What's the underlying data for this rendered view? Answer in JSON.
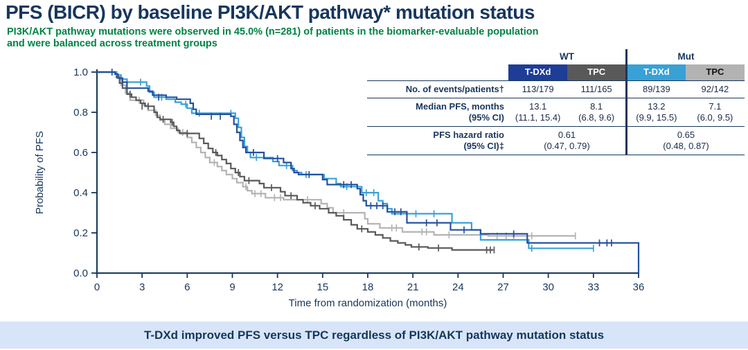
{
  "header": {
    "title": "PFS (BICR) by baseline PI3K/AKT pathway* mutation status",
    "subtitle_line1": "PI3K/AKT pathway mutations were observed in 45.0% (n=281) of patients in the biomarker-evaluable population",
    "subtitle_line2": "and were balanced across treatment groups"
  },
  "colors": {
    "navy_text": "#17365d",
    "green_text": "#008345",
    "wt_tdxd": "#2450a0",
    "wt_tpc": "#595959",
    "mut_tdxd": "#38a1d6",
    "mut_tpc": "#b3b3b3",
    "header_navy_bg": "#1e3d96",
    "banner_bg": "#d8e5f8"
  },
  "table": {
    "wt_label": "WT",
    "mut_label": "Mut",
    "tdxd_label": "T-DXd",
    "tpc_label": "TPC",
    "row_events_label": "No. of events/patients†",
    "row_events": [
      "113/179",
      "111/165",
      "89/139",
      "92/142"
    ],
    "row_median_label_1": "Median PFS, months",
    "row_median_label_2": "(95% CI)",
    "row_median_top": [
      "13.1",
      "8.1",
      "13.2",
      "7.1"
    ],
    "row_median_ci": [
      "(11.1, 15.4)",
      "(6.8, 9.6)",
      "(9.9, 15.5)",
      "(6.0, 9.5)"
    ],
    "row_hr_label_1": "PFS hazard ratio",
    "row_hr_label_2": "(95% CI)‡",
    "row_hr_top": [
      "0.61",
      "0.65"
    ],
    "row_hr_ci": [
      "(0.47, 0.79)",
      "(0.48, 0.87)"
    ]
  },
  "banner": {
    "text": "T-DXd improved PFS versus TPC regardless of PI3K/AKT pathway mutation status"
  },
  "chart_data": {
    "type": "line",
    "subtype": "kaplan-meier-step",
    "title": "",
    "xlabel": "Time from randomization (months)",
    "ylabel": "Probability of PFS",
    "xlim": [
      0,
      36
    ],
    "ylim": [
      0,
      1
    ],
    "x_ticks": [
      0,
      3,
      6,
      9,
      12,
      15,
      18,
      21,
      24,
      27,
      30,
      33,
      36
    ],
    "y_ticks": [
      0.0,
      0.2,
      0.4,
      0.6,
      0.8,
      1.0
    ],
    "grid": false,
    "legend": "none (series identified by table header colors)",
    "series": [
      {
        "name": "Mut TPC",
        "color": "#b3b3b3",
        "median_pfs_months": 7.1,
        "steps": [
          [
            0,
            1.0
          ],
          [
            1.3,
            0.97
          ],
          [
            1.6,
            0.935
          ],
          [
            1.9,
            0.895
          ],
          [
            2.2,
            0.86
          ],
          [
            3.1,
            0.835
          ],
          [
            3.4,
            0.81
          ],
          [
            3.9,
            0.785
          ],
          [
            4.2,
            0.76
          ],
          [
            4.5,
            0.74
          ],
          [
            4.9,
            0.72
          ],
          [
            5.4,
            0.7
          ],
          [
            6.0,
            0.675
          ],
          [
            6.3,
            0.65
          ],
          [
            6.6,
            0.625
          ],
          [
            6.9,
            0.6
          ],
          [
            7.2,
            0.575
          ],
          [
            7.5,
            0.55
          ],
          [
            8.0,
            0.53
          ],
          [
            8.3,
            0.51
          ],
          [
            8.6,
            0.49
          ],
          [
            9.0,
            0.47
          ],
          [
            9.3,
            0.45
          ],
          [
            9.7,
            0.43
          ],
          [
            10.0,
            0.41
          ],
          [
            10.3,
            0.395
          ],
          [
            11.2,
            0.375
          ],
          [
            12.4,
            0.365
          ],
          [
            14.9,
            0.345
          ],
          [
            15.3,
            0.325
          ],
          [
            15.7,
            0.3
          ],
          [
            17.8,
            0.27
          ],
          [
            18.0,
            0.245
          ],
          [
            18.8,
            0.225
          ],
          [
            20.3,
            0.205
          ],
          [
            22.4,
            0.19
          ],
          [
            26.0,
            0.185
          ],
          [
            31.8,
            0.185
          ]
        ],
        "censors": [
          [
            2.8,
            0.86
          ],
          [
            5.7,
            0.7
          ],
          [
            7.8,
            0.55
          ],
          [
            9.9,
            0.43
          ],
          [
            10.5,
            0.395
          ],
          [
            10.9,
            0.395
          ],
          [
            11.8,
            0.375
          ],
          [
            12.2,
            0.375
          ],
          [
            14.0,
            0.365
          ],
          [
            16.4,
            0.3
          ],
          [
            19.6,
            0.225
          ],
          [
            19.9,
            0.225
          ],
          [
            21.6,
            0.205
          ],
          [
            21.9,
            0.205
          ],
          [
            23.4,
            0.19
          ],
          [
            26.6,
            0.185
          ],
          [
            27.2,
            0.185
          ],
          [
            27.7,
            0.185
          ],
          [
            28.9,
            0.185
          ],
          [
            31.8,
            0.185
          ]
        ]
      },
      {
        "name": "WT TPC",
        "color": "#595959",
        "median_pfs_months": 8.1,
        "steps": [
          [
            0,
            1.0
          ],
          [
            1.3,
            0.975
          ],
          [
            1.5,
            0.945
          ],
          [
            1.7,
            0.92
          ],
          [
            2.0,
            0.89
          ],
          [
            2.3,
            0.875
          ],
          [
            2.6,
            0.86
          ],
          [
            2.9,
            0.845
          ],
          [
            3.2,
            0.83
          ],
          [
            3.8,
            0.8
          ],
          [
            4.0,
            0.775
          ],
          [
            4.2,
            0.765
          ],
          [
            4.9,
            0.75
          ],
          [
            5.1,
            0.73
          ],
          [
            5.3,
            0.71
          ],
          [
            5.5,
            0.695
          ],
          [
            6.8,
            0.67
          ],
          [
            7.1,
            0.645
          ],
          [
            7.4,
            0.62
          ],
          [
            7.7,
            0.6
          ],
          [
            8.0,
            0.585
          ],
          [
            8.3,
            0.565
          ],
          [
            8.6,
            0.545
          ],
          [
            8.9,
            0.52
          ],
          [
            9.2,
            0.5
          ],
          [
            9.5,
            0.48
          ],
          [
            9.8,
            0.46
          ],
          [
            10.8,
            0.445
          ],
          [
            11.1,
            0.425
          ],
          [
            12.2,
            0.405
          ],
          [
            12.5,
            0.385
          ],
          [
            13.3,
            0.365
          ],
          [
            13.7,
            0.35
          ],
          [
            14.2,
            0.335
          ],
          [
            14.8,
            0.32
          ],
          [
            15.4,
            0.3
          ],
          [
            15.9,
            0.285
          ],
          [
            16.4,
            0.265
          ],
          [
            16.9,
            0.24
          ],
          [
            17.3,
            0.22
          ],
          [
            18.0,
            0.205
          ],
          [
            18.5,
            0.19
          ],
          [
            19.0,
            0.175
          ],
          [
            19.5,
            0.16
          ],
          [
            20.0,
            0.15
          ],
          [
            20.5,
            0.14
          ],
          [
            20.9,
            0.13
          ],
          [
            22.0,
            0.125
          ],
          [
            23.6,
            0.115
          ],
          [
            26.35,
            0.115
          ]
        ],
        "censors": [
          [
            2.2,
            0.89
          ],
          [
            3.0,
            0.83
          ],
          [
            3.4,
            0.83
          ],
          [
            4.4,
            0.765
          ],
          [
            5.0,
            0.75
          ],
          [
            6.0,
            0.695
          ],
          [
            7.9,
            0.6
          ],
          [
            9.4,
            0.5
          ],
          [
            10.1,
            0.46
          ],
          [
            11.6,
            0.425
          ],
          [
            12.9,
            0.385
          ],
          [
            14.5,
            0.335
          ],
          [
            17.6,
            0.22
          ],
          [
            21.4,
            0.13
          ],
          [
            22.7,
            0.125
          ],
          [
            25.9,
            0.115
          ],
          [
            26.15,
            0.115
          ],
          [
            26.4,
            0.115
          ]
        ]
      },
      {
        "name": "Mut T-DXd",
        "color": "#38a1d6",
        "median_pfs_months": 13.2,
        "steps": [
          [
            0,
            1.0
          ],
          [
            1.3,
            0.985
          ],
          [
            1.6,
            0.965
          ],
          [
            2.0,
            0.95
          ],
          [
            3.3,
            0.93
          ],
          [
            3.5,
            0.9
          ],
          [
            3.8,
            0.875
          ],
          [
            4.6,
            0.865
          ],
          [
            5.2,
            0.85
          ],
          [
            5.6,
            0.84
          ],
          [
            6.0,
            0.82
          ],
          [
            6.3,
            0.795
          ],
          [
            9.2,
            0.77
          ],
          [
            9.4,
            0.725
          ],
          [
            9.6,
            0.675
          ],
          [
            9.8,
            0.63
          ],
          [
            10.0,
            0.6
          ],
          [
            10.2,
            0.575
          ],
          [
            11.7,
            0.555
          ],
          [
            12.1,
            0.535
          ],
          [
            13.0,
            0.51
          ],
          [
            13.3,
            0.5
          ],
          [
            13.6,
            0.49
          ],
          [
            15.1,
            0.47
          ],
          [
            15.9,
            0.445
          ],
          [
            16.2,
            0.43
          ],
          [
            17.6,
            0.4
          ],
          [
            18.7,
            0.36
          ],
          [
            19.0,
            0.345
          ],
          [
            19.3,
            0.32
          ],
          [
            19.6,
            0.295
          ],
          [
            23.6,
            0.25
          ],
          [
            24.9,
            0.215
          ],
          [
            25.5,
            0.165
          ],
          [
            28.7,
            0.123
          ],
          [
            33.0,
            0.123
          ]
        ],
        "censors": [
          [
            2.9,
            0.95
          ],
          [
            4.3,
            0.875
          ],
          [
            5.9,
            0.84
          ],
          [
            6.8,
            0.795
          ],
          [
            8.9,
            0.795
          ],
          [
            10.6,
            0.575
          ],
          [
            12.6,
            0.535
          ],
          [
            13.9,
            0.49
          ],
          [
            16.6,
            0.43
          ],
          [
            17.9,
            0.4
          ],
          [
            18.4,
            0.4
          ],
          [
            21.2,
            0.295
          ],
          [
            22.4,
            0.295
          ],
          [
            28.9,
            0.123
          ],
          [
            33.0,
            0.123
          ]
        ]
      },
      {
        "name": "WT T-DXd",
        "color": "#2450a0",
        "median_pfs_months": 13.1,
        "steps": [
          [
            0,
            1.0
          ],
          [
            1.2,
            0.99
          ],
          [
            1.4,
            0.97
          ],
          [
            1.7,
            0.95
          ],
          [
            2.0,
            0.92
          ],
          [
            3.4,
            0.905
          ],
          [
            3.7,
            0.885
          ],
          [
            4.6,
            0.875
          ],
          [
            5.3,
            0.865
          ],
          [
            6.2,
            0.845
          ],
          [
            6.4,
            0.815
          ],
          [
            6.6,
            0.79
          ],
          [
            8.9,
            0.78
          ],
          [
            9.1,
            0.74
          ],
          [
            9.3,
            0.7
          ],
          [
            9.5,
            0.66
          ],
          [
            9.7,
            0.625
          ],
          [
            9.9,
            0.6
          ],
          [
            11.1,
            0.57
          ],
          [
            12.4,
            0.55
          ],
          [
            12.9,
            0.52
          ],
          [
            13.1,
            0.5
          ],
          [
            13.4,
            0.49
          ],
          [
            15.0,
            0.465
          ],
          [
            15.3,
            0.44
          ],
          [
            17.3,
            0.42
          ],
          [
            17.5,
            0.39
          ],
          [
            17.7,
            0.36
          ],
          [
            17.9,
            0.335
          ],
          [
            19.3,
            0.305
          ],
          [
            20.6,
            0.25
          ],
          [
            23.5,
            0.215
          ],
          [
            25.5,
            0.195
          ],
          [
            28.6,
            0.15
          ],
          [
            36,
            0.15
          ],
          [
            36,
            0.0
          ]
        ],
        "censors": [
          [
            1.0,
            1.0
          ],
          [
            4.1,
            0.875
          ],
          [
            7.6,
            0.78
          ],
          [
            8.2,
            0.78
          ],
          [
            10.4,
            0.6
          ],
          [
            12.0,
            0.57
          ],
          [
            14.1,
            0.49
          ],
          [
            16.4,
            0.44
          ],
          [
            16.9,
            0.44
          ],
          [
            18.2,
            0.335
          ],
          [
            18.6,
            0.335
          ],
          [
            19.0,
            0.335
          ],
          [
            19.8,
            0.305
          ],
          [
            20.2,
            0.305
          ],
          [
            21.9,
            0.25
          ],
          [
            22.6,
            0.25
          ],
          [
            24.4,
            0.215
          ],
          [
            27.7,
            0.195
          ],
          [
            33.4,
            0.15
          ],
          [
            33.9,
            0.15
          ],
          [
            34.2,
            0.15
          ]
        ]
      }
    ]
  }
}
